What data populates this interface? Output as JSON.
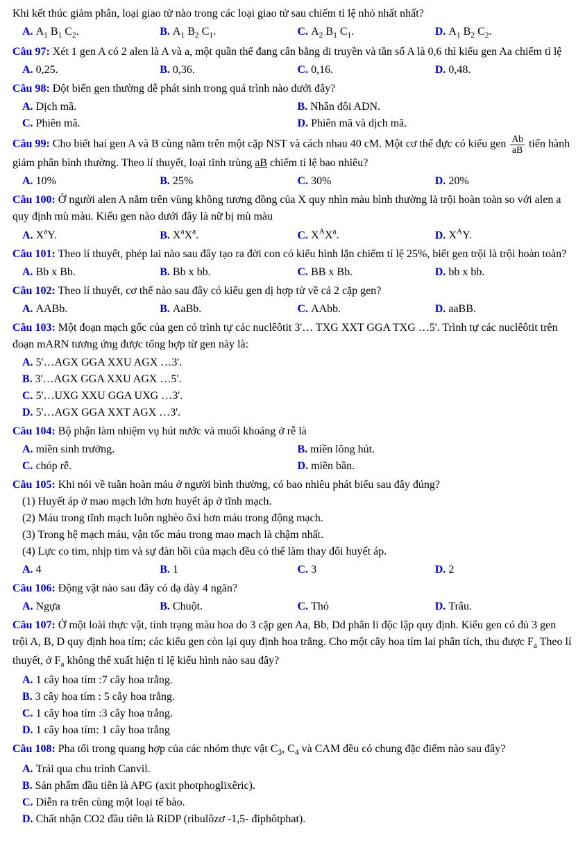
{
  "colors": {
    "label": "#0000cd",
    "text": "#000000",
    "bg": "#ffffff"
  },
  "typography": {
    "font_family": "Times New Roman",
    "base_fontsize": 16,
    "bold_labels": true
  },
  "intro_line": "Khi kết thúc giảm phân, loại giao tử nào trong các loại giao tử sau chiếm tỉ lệ nhỏ nhất nhất?",
  "intro_options": {
    "A": "A₁ B₁ C₂.",
    "B": "A₁ B₂ C₁.",
    "C": "A₂ B₁ C₁.",
    "D": "A₁ B₂ C₂."
  },
  "q97": {
    "num": "Câu 97:",
    "text": " Xét 1 gen A có 2 alen là A và a, một quần thể đang cân bằng di truyền và tần số A là 0,6 thì kiểu gen Aa chiếm tỉ lệ",
    "A": "0,25.",
    "B": "0,36.",
    "C": "0,16.",
    "D": "0,48."
  },
  "q98": {
    "num": "Câu 98:",
    "text": " Đột biến gen thường dễ phát sinh trong quá trình nào dưới đây?",
    "A": "Dịch mã.",
    "B": "Nhân đôi ADN.",
    "C": "Phiên mã.",
    "D": "Phiên mã và dịch mã."
  },
  "q99": {
    "num": "Câu 99:",
    "text_before": " Cho biết hai gen A và B cùng nằm trên một cặp NST và cách nhau 40 cM. Một cơ thể đực có kiểu gen ",
    "frac_num": "Ab",
    "frac_den": "aB",
    "text_mid": " tiến hành giảm phân bình thường. Theo lí thuyết, loại tinh trùng ",
    "ul": "aB",
    "text_after": " chiếm tỉ lệ bao nhiêu?",
    "A": "10%",
    "B": "25%",
    "C": "30%",
    "D": "20%"
  },
  "q100": {
    "num": "Câu 100:",
    "text": " Ở người alen A nằm trên vùng không tương đồng của X quy nhìn màu bình thường là trội hoàn toàn so với alen a quy định mù màu. Kiểu gen nào dưới đây là nữ bị mù màu",
    "A": "XᵃY.",
    "B": "XᵃXᵃ.",
    "C": "XᴬXᵃ.",
    "D": "XᴬY."
  },
  "q101": {
    "num": "Câu 101:",
    "text": " Theo lí thuyết, phép lai nào sau đây tạo ra đời con có kiểu hình lặn chiếm tỉ lệ 25%, biết gen trội là trội hoàn toàn?",
    "A": "Bb x Bb.",
    "B": "Bb x bb.",
    "C": "BB x Bb.",
    "D": "bb x bb."
  },
  "q102": {
    "num": "Câu 102:",
    "text": " Theo lí thuyết, cơ thể nào sau đây có kiểu gen dị hợp tử về cả 2 cặp gen?",
    "A": "AABb.",
    "B": "AaBb.",
    "C": "AAbb.",
    "D": "aaBB."
  },
  "q103": {
    "num": "Câu 103:",
    "text": " Một đoạn mạch gốc của gen có trình tự các nuclêôtit 3'… TXG XXT GGA TXG …5'.  Trình tự các nuclêôtit trên đoạn mARN tương ứng được tổng hợp từ gen này là:",
    "A": "5'…AGX GGA XXU AGX …3'.",
    "B": "3'…AGX GGA XXU AGX …5'.",
    "C": "5'…UXG XXU GGA UXG …3'.",
    "D": "5'…AGX GGA XXT AGX …3'."
  },
  "q104": {
    "num": "Câu 104:",
    "text": " Bộ phận làm nhiệm vụ hút nước và muối khoáng ở rễ là",
    "A": "miền sinh trưởng.",
    "B": "miền lông hút.",
    "C": "chóp rễ.",
    "D": "miền bần."
  },
  "q105": {
    "num": "Câu 105:",
    "text": " Khi nói về tuần hoàn máu ở người bình thường, có bao nhiêu phát biểu sau đây đúng?",
    "s1": "(1) Huyết áp ở mao mạch lớn hơn huyết áp ở tĩnh mạch.",
    "s2": "(2) Máu trong tĩnh mạch luôn nghèo ôxi hơn máu trong động mạch.",
    "s3": "(3) Trong hệ mạch máu, vận tốc máu trong mao mạch là chậm nhất.",
    "s4": "(4) Lực co tim, nhịp tim và sự đàn hồi của mạch đều có thể làm thay đổi huyết áp.",
    "A": "4",
    "B": "1",
    "C": "3",
    "D": "2"
  },
  "q106": {
    "num": "Câu 106:",
    "text": " Động vật nào sau đây có dạ dày 4 ngăn?",
    "A": "Ngựa",
    "B": "Chuột.",
    "C": "Thỏ",
    "D": "Trâu."
  },
  "q107": {
    "num": "Câu 107:",
    "text": " Ở một loài thực vật, tính trạng màu hoa do 3 cặp gen Aa, Bb, Dd phân li độc lập quy định. Kiểu gen có đủ 3 gen trội A, B, D quy định hoa tím; các kiểu gen còn lại quy định hoa trắng. Cho một cây hoa tím lai phân tích, thu được Fₐ Theo lí thuyết, ở Fₐ không thể xuất hiện tỉ lệ kiểu hình nào sau đây?",
    "A": "1 cây hoa tím :7 cây hoa trắng.",
    "B": "3 cây hoa tím : 5 cây hoa trắng.",
    "C": "1 cây hoa tím :3 cây hoa trắng.",
    "D": "1 cây hoa tím: 1 cây hoa trắng"
  },
  "q108": {
    "num": "Câu 108:",
    "text": " Pha tối trong quang hợp của các nhóm thực vật C₃, C₄ và CAM đều có chung đặc điểm nào sau đây?",
    "A": "Trải qua chu trình Canvil.",
    "B": "Sản phẩm đầu tiên là APG (axit photphoglixêric).",
    "C": "Diễn ra trên cùng một loại tế bào.",
    "D": "Chất nhận CO2 đầu tiên là RiDP (ribulôzơ -1,5- điphôtphat)."
  }
}
